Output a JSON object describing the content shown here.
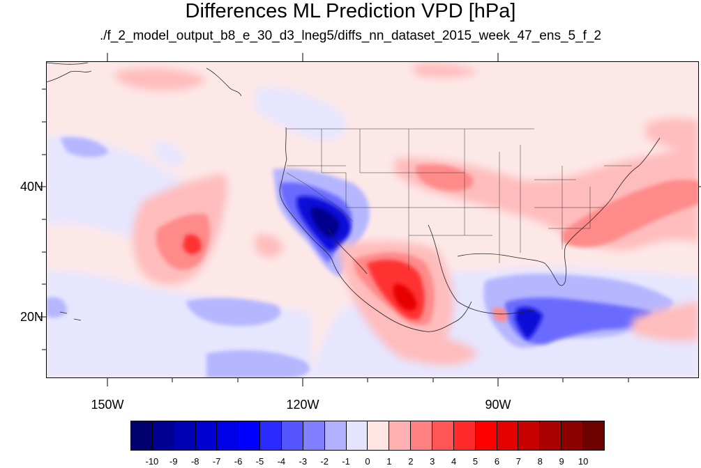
{
  "title": "Differences ML Prediction VPD [hPa]",
  "subtitle": "./f_2_model_output_b8_e_30_d3_lneg5/diffs_nn_dataset_2015_week_47_ens_5_f_2",
  "lon_labels": [
    "150W",
    "120W",
    "90W"
  ],
  "lat_labels": [
    "40N",
    "20N"
  ],
  "colorbar": {
    "labels": [
      "-10",
      "-9",
      "-8",
      "-7",
      "-6",
      "-5",
      "-4",
      "-3",
      "-2",
      "-1",
      "0",
      "1",
      "2",
      "3",
      "4",
      "5",
      "6",
      "7",
      "8",
      "9",
      "10"
    ],
    "colors": [
      "#00006e",
      "#000092",
      "#0000b4",
      "#0000d2",
      "#0000e8",
      "#0000ff",
      "#2a2aff",
      "#5555ff",
      "#8080ff",
      "#b0b0ff",
      "#e4e4ff",
      "#ffe4e4",
      "#ffb0b0",
      "#ff8080",
      "#ff5555",
      "#ff2a2a",
      "#ff0000",
      "#e60000",
      "#c80000",
      "#aa0000",
      "#8c0000",
      "#6e0000"
    ]
  }
}
